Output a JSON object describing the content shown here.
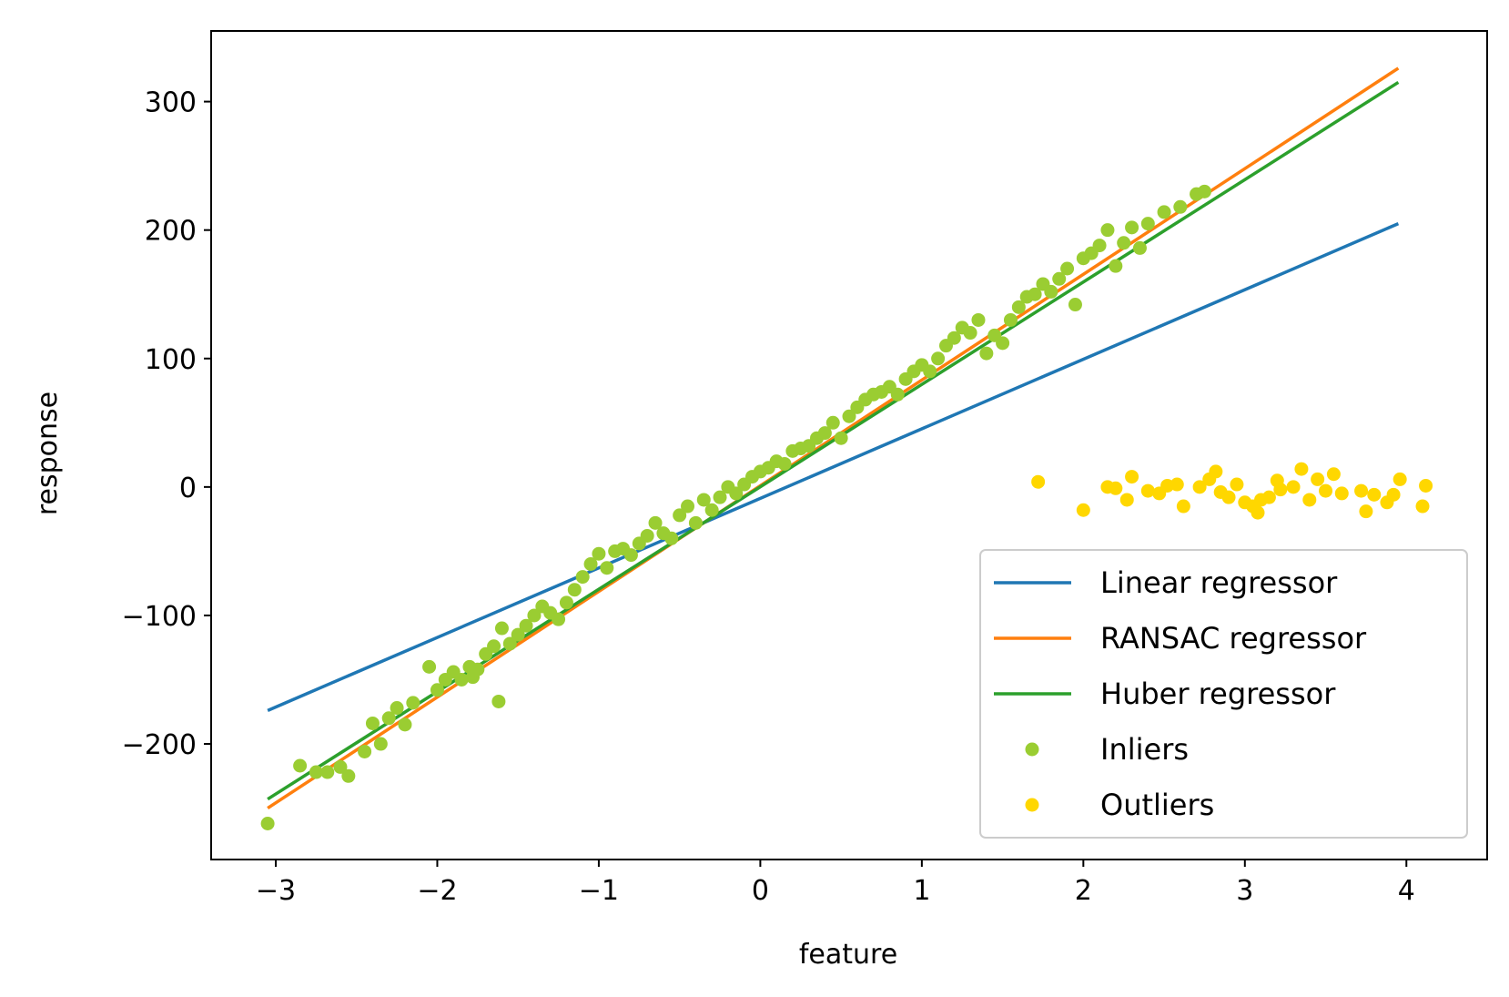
{
  "chart_data": {
    "type": "scatter",
    "title": "",
    "xlabel": "feature",
    "ylabel": "response",
    "xlim": [
      -3.4,
      4.5
    ],
    "ylim": [
      -290,
      355
    ],
    "xticks": [
      -3,
      -2,
      -1,
      0,
      1,
      2,
      3,
      4
    ],
    "xtick_labels": [
      "−3",
      "−2",
      "−1",
      "0",
      "1",
      "2",
      "3",
      "4"
    ],
    "yticks": [
      -200,
      -100,
      0,
      100,
      200,
      300
    ],
    "ytick_labels": [
      "−200",
      "−100",
      "0",
      "100",
      "200",
      "300"
    ],
    "grid": false,
    "legend_position": "lower-right",
    "series": [
      {
        "name": "Linear regressor",
        "kind": "line",
        "color": "#1f77b4",
        "x": [
          -3.05,
          3.95
        ],
        "y": [
          -174,
          205
        ]
      },
      {
        "name": "RANSAC regressor",
        "kind": "line",
        "color": "#ff7f0e",
        "x": [
          -3.05,
          3.95
        ],
        "y": [
          -250,
          326
        ]
      },
      {
        "name": "Huber regressor",
        "kind": "line",
        "color": "#2ca02c",
        "x": [
          -3.05,
          3.95
        ],
        "y": [
          -243,
          315
        ]
      },
      {
        "name": "Inliers",
        "kind": "scatter",
        "color": "#9acd32",
        "x": [
          -3.05,
          -2.85,
          -2.75,
          -2.68,
          -2.6,
          -2.55,
          -2.45,
          -2.4,
          -2.35,
          -2.3,
          -2.25,
          -2.2,
          -2.15,
          -2.05,
          -2.0,
          -1.95,
          -1.9,
          -1.85,
          -1.8,
          -1.78,
          -1.75,
          -1.7,
          -1.65,
          -1.62,
          -1.6,
          -1.55,
          -1.5,
          -1.45,
          -1.4,
          -1.35,
          -1.3,
          -1.25,
          -1.2,
          -1.15,
          -1.1,
          -1.05,
          -1.0,
          -0.95,
          -0.9,
          -0.85,
          -0.8,
          -0.75,
          -0.7,
          -0.65,
          -0.6,
          -0.55,
          -0.5,
          -0.45,
          -0.4,
          -0.35,
          -0.3,
          -0.25,
          -0.2,
          -0.15,
          -0.1,
          -0.05,
          0.0,
          0.05,
          0.1,
          0.15,
          0.2,
          0.25,
          0.3,
          0.35,
          0.4,
          0.45,
          0.5,
          0.55,
          0.6,
          0.65,
          0.7,
          0.75,
          0.8,
          0.85,
          0.9,
          0.95,
          1.0,
          1.05,
          1.1,
          1.15,
          1.2,
          1.25,
          1.3,
          1.35,
          1.4,
          1.45,
          1.5,
          1.55,
          1.6,
          1.65,
          1.7,
          1.75,
          1.8,
          1.85,
          1.9,
          1.95,
          2.0,
          2.05,
          2.1,
          2.15,
          2.2,
          2.25,
          2.3,
          2.35,
          2.4,
          2.5,
          2.6,
          2.7,
          2.75
        ],
        "y": [
          -262,
          -217,
          -222,
          -222,
          -218,
          -225,
          -206,
          -184,
          -200,
          -180,
          -172,
          -185,
          -168,
          -140,
          -158,
          -150,
          -144,
          -150,
          -140,
          -148,
          -142,
          -130,
          -124,
          -167,
          -110,
          -122,
          -115,
          -108,
          -100,
          -93,
          -98,
          -103,
          -90,
          -80,
          -70,
          -60,
          -52,
          -63,
          -50,
          -48,
          -53,
          -44,
          -38,
          -28,
          -36,
          -40,
          -22,
          -15,
          -28,
          -10,
          -18,
          -8,
          0,
          -5,
          2,
          8,
          12,
          15,
          20,
          18,
          28,
          30,
          32,
          38,
          42,
          50,
          38,
          55,
          62,
          68,
          72,
          74,
          78,
          72,
          84,
          90,
          95,
          90,
          100,
          110,
          116,
          124,
          120,
          130,
          104,
          118,
          112,
          130,
          140,
          148,
          150,
          158,
          152,
          162,
          170,
          142,
          178,
          182,
          188,
          200,
          172,
          190,
          202,
          186,
          205,
          214,
          218,
          228,
          230
        ]
      },
      {
        "name": "Outliers",
        "kind": "scatter",
        "color": "#ffd700",
        "x": [
          1.72,
          2.0,
          2.15,
          2.2,
          2.27,
          2.3,
          2.4,
          2.47,
          2.52,
          2.58,
          2.62,
          2.72,
          2.78,
          2.82,
          2.85,
          2.9,
          2.95,
          3.0,
          3.05,
          3.08,
          3.1,
          3.15,
          3.2,
          3.22,
          3.3,
          3.35,
          3.4,
          3.45,
          3.5,
          3.55,
          3.6,
          3.72,
          3.75,
          3.8,
          3.88,
          3.92,
          3.96,
          4.1,
          4.12
        ],
        "y": [
          4,
          -18,
          0,
          -1,
          -10,
          8,
          -3,
          -5,
          1,
          2,
          -15,
          0,
          6,
          12,
          -4,
          -8,
          2,
          -12,
          -15,
          -20,
          -10,
          -8,
          5,
          -2,
          0,
          14,
          -10,
          6,
          -3,
          10,
          -5,
          -3,
          -19,
          -6,
          -12,
          -6,
          6,
          -15,
          1
        ]
      }
    ]
  }
}
